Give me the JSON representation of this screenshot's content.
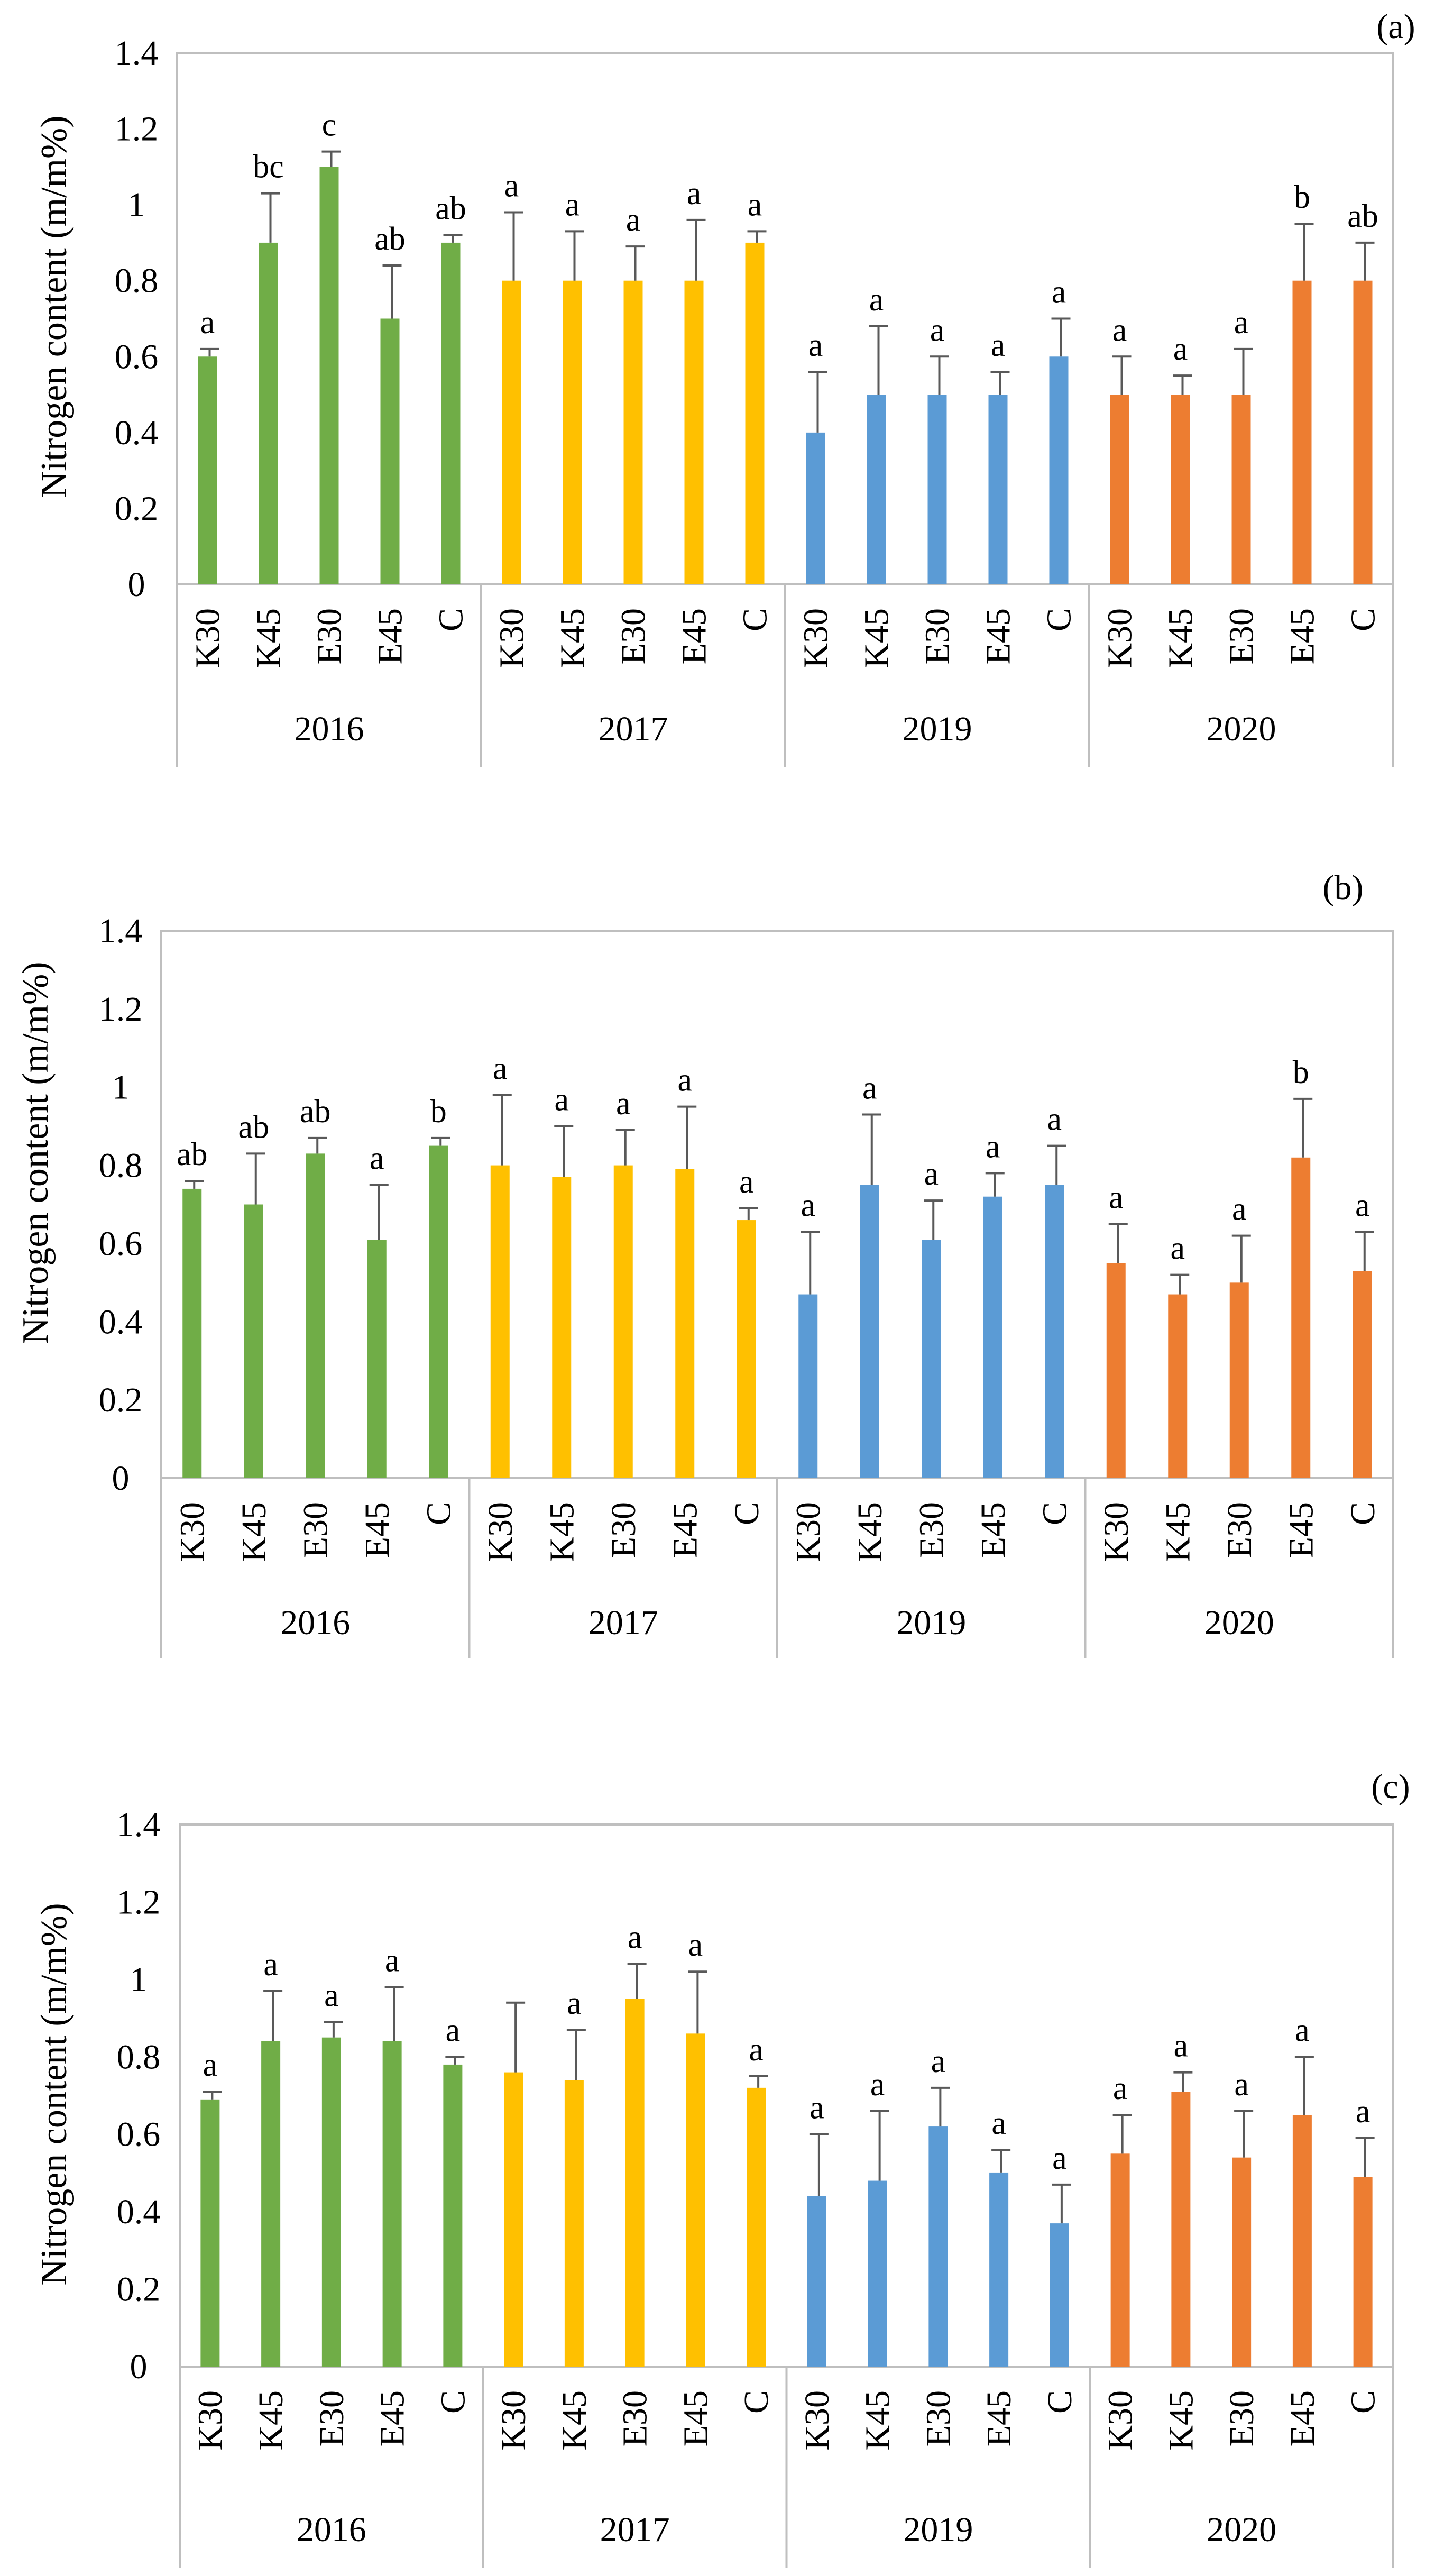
{
  "chart_data": [
    {
      "type": "bar",
      "panel_label": "(a)",
      "ylabel": "Nitrogen content (m/m%)",
      "ylim": [
        0,
        1.4
      ],
      "yticks": [
        "0",
        "0.2",
        "0.4",
        "0.6",
        "0.8",
        "1",
        "1.2",
        "1.4"
      ],
      "groups": [
        "2016",
        "2017",
        "2019",
        "2020"
      ],
      "categories": [
        "K30",
        "K45",
        "E30",
        "E45",
        "C"
      ],
      "colors": [
        "#70AD47",
        "#FFC000",
        "#5B9BD5",
        "#ED7D31"
      ],
      "series": [
        {
          "name": "2016",
          "values": [
            0.6,
            0.9,
            1.1,
            0.7,
            0.9
          ],
          "errors": [
            0.02,
            0.13,
            0.04,
            0.14,
            0.02
          ],
          "labels": [
            "a",
            "bc",
            "c",
            "ab",
            "ab"
          ]
        },
        {
          "name": "2017",
          "values": [
            0.8,
            0.8,
            0.8,
            0.8,
            0.9
          ],
          "errors": [
            0.18,
            0.13,
            0.09,
            0.16,
            0.03
          ],
          "labels": [
            "a",
            "a",
            "a",
            "a",
            "a"
          ]
        },
        {
          "name": "2019",
          "values": [
            0.4,
            0.5,
            0.5,
            0.5,
            0.6
          ],
          "errors": [
            0.16,
            0.18,
            0.1,
            0.06,
            0.1
          ],
          "labels": [
            "a",
            "a",
            "a",
            "a",
            "a"
          ]
        },
        {
          "name": "2020",
          "values": [
            0.5,
            0.5,
            0.5,
            0.8,
            0.8
          ],
          "errors": [
            0.1,
            0.05,
            0.12,
            0.15,
            0.1
          ],
          "labels": [
            "a",
            "a",
            "a",
            "b",
            "ab"
          ]
        }
      ]
    },
    {
      "type": "bar",
      "panel_label": "(b)",
      "ylabel": "Nitrogen content (m/m%)",
      "ylim": [
        0,
        1.4
      ],
      "yticks": [
        "0",
        "0.2",
        "0.4",
        "0.6",
        "0.8",
        "1",
        "1.2",
        "1.4"
      ],
      "groups": [
        "2016",
        "2017",
        "2019",
        "2020"
      ],
      "categories": [
        "K30",
        "K45",
        "E30",
        "E45",
        "C"
      ],
      "colors": [
        "#70AD47",
        "#FFC000",
        "#5B9BD5",
        "#ED7D31"
      ],
      "series": [
        {
          "name": "2016",
          "values": [
            0.74,
            0.7,
            0.83,
            0.61,
            0.85
          ],
          "errors": [
            0.02,
            0.13,
            0.04,
            0.14,
            0.02
          ],
          "labels": [
            "ab",
            "ab",
            "ab",
            "a",
            "b"
          ]
        },
        {
          "name": "2017",
          "values": [
            0.8,
            0.77,
            0.8,
            0.79,
            0.66
          ],
          "errors": [
            0.18,
            0.13,
            0.09,
            0.16,
            0.03
          ],
          "labels": [
            "a",
            "a",
            "a",
            "a",
            "a"
          ]
        },
        {
          "name": "2019",
          "values": [
            0.47,
            0.75,
            0.61,
            0.72,
            0.75
          ],
          "errors": [
            0.16,
            0.18,
            0.1,
            0.06,
            0.1
          ],
          "labels": [
            "a",
            "a",
            "a",
            "a",
            "a"
          ]
        },
        {
          "name": "2020",
          "values": [
            0.55,
            0.47,
            0.5,
            0.82,
            0.53
          ],
          "errors": [
            0.1,
            0.05,
            0.12,
            0.15,
            0.1
          ],
          "labels": [
            "a",
            "a",
            "a",
            "b",
            "a"
          ]
        }
      ]
    },
    {
      "type": "bar",
      "panel_label": "(c)",
      "ylabel": "Nitrogen content (m/m%)",
      "ylim": [
        0,
        1.4
      ],
      "yticks": [
        "0",
        "0.2",
        "0.4",
        "0.6",
        "0.8",
        "1",
        "1.2",
        "1.4"
      ],
      "groups": [
        "2016",
        "2017",
        "2019",
        "2020"
      ],
      "categories": [
        "K30",
        "K45",
        "E30",
        "E45",
        "C"
      ],
      "colors": [
        "#70AD47",
        "#FFC000",
        "#5B9BD5",
        "#ED7D31"
      ],
      "series": [
        {
          "name": "2016",
          "values": [
            0.69,
            0.84,
            0.85,
            0.84,
            0.78
          ],
          "errors": [
            0.02,
            0.13,
            0.04,
            0.14,
            0.02
          ],
          "labels": [
            "a",
            "a",
            "a",
            "a",
            "a"
          ]
        },
        {
          "name": "2017",
          "values": [
            0.76,
            0.74,
            0.95,
            0.86,
            0.72
          ],
          "errors": [
            0.18,
            0.13,
            0.09,
            0.16,
            0.03
          ],
          "labels": [
            "",
            "a",
            "a",
            "a",
            "a"
          ]
        },
        {
          "name": "2019",
          "values": [
            0.44,
            0.48,
            0.62,
            0.5,
            0.37
          ],
          "errors": [
            0.16,
            0.18,
            0.1,
            0.06,
            0.1
          ],
          "labels": [
            "a",
            "a",
            "a",
            "a",
            "a"
          ]
        },
        {
          "name": "2020",
          "values": [
            0.55,
            0.71,
            0.54,
            0.65,
            0.49
          ],
          "errors": [
            0.1,
            0.05,
            0.12,
            0.15,
            0.1
          ],
          "labels": [
            "a",
            "a",
            "a",
            "a",
            "a"
          ]
        }
      ]
    }
  ]
}
